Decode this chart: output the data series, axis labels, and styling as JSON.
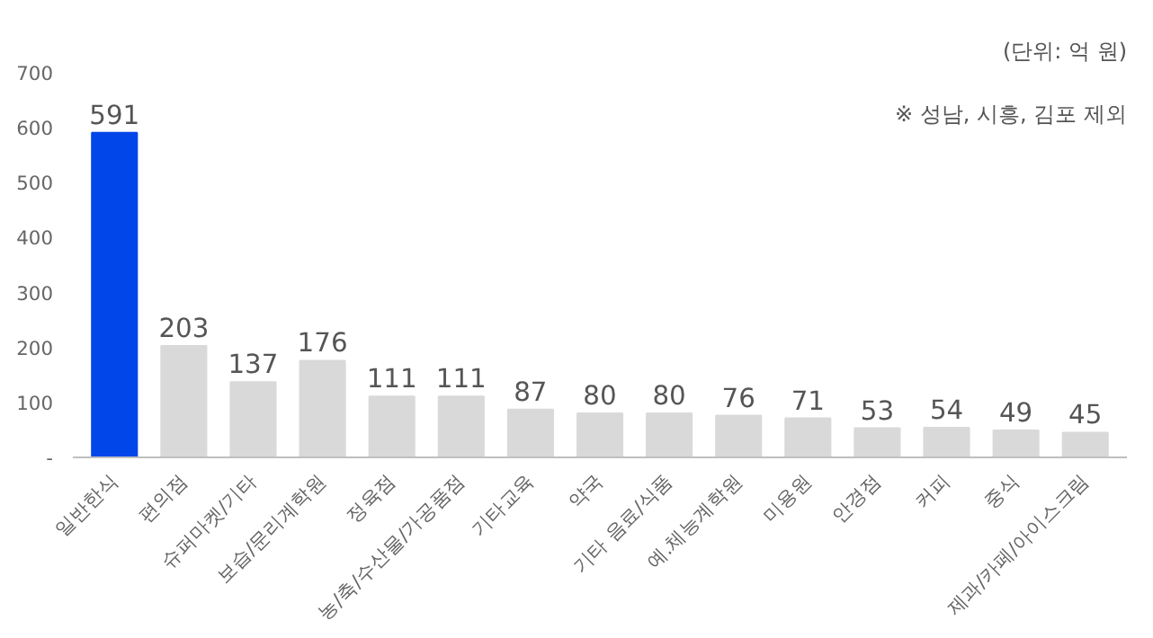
{
  "chart_data": {
    "type": "bar",
    "categories": [
      "일반한식",
      "편의점",
      "슈퍼마켓/기타",
      "보습/문리계학원",
      "정육점",
      "농/축/수산물/가공품점",
      "기타교육",
      "약국",
      "기타 음료/식품",
      "예.체능계학원",
      "미용원",
      "안경점",
      "커피",
      "중식",
      "제과/카페/아이스크림"
    ],
    "values": [
      591,
      203,
      137,
      176,
      111,
      111,
      87,
      80,
      80,
      76,
      71,
      53,
      54,
      49,
      45
    ],
    "colors": [
      "#0046e8",
      "#d9d9d9",
      "#d9d9d9",
      "#d9d9d9",
      "#d9d9d9",
      "#d9d9d9",
      "#d9d9d9",
      "#d9d9d9",
      "#d9d9d9",
      "#d9d9d9",
      "#d9d9d9",
      "#d9d9d9",
      "#d9d9d9",
      "#d9d9d9",
      "#d9d9d9"
    ],
    "ylim": [
      0,
      700
    ],
    "yticks": [
      {
        "value": 0,
        "label": "-"
      },
      100,
      200,
      300,
      400,
      500,
      600,
      700
    ],
    "data_labels": true,
    "grid": false,
    "annotations": [
      "(단위: 억 원)",
      "※ 성남, 시흥, 김포 제외"
    ]
  }
}
